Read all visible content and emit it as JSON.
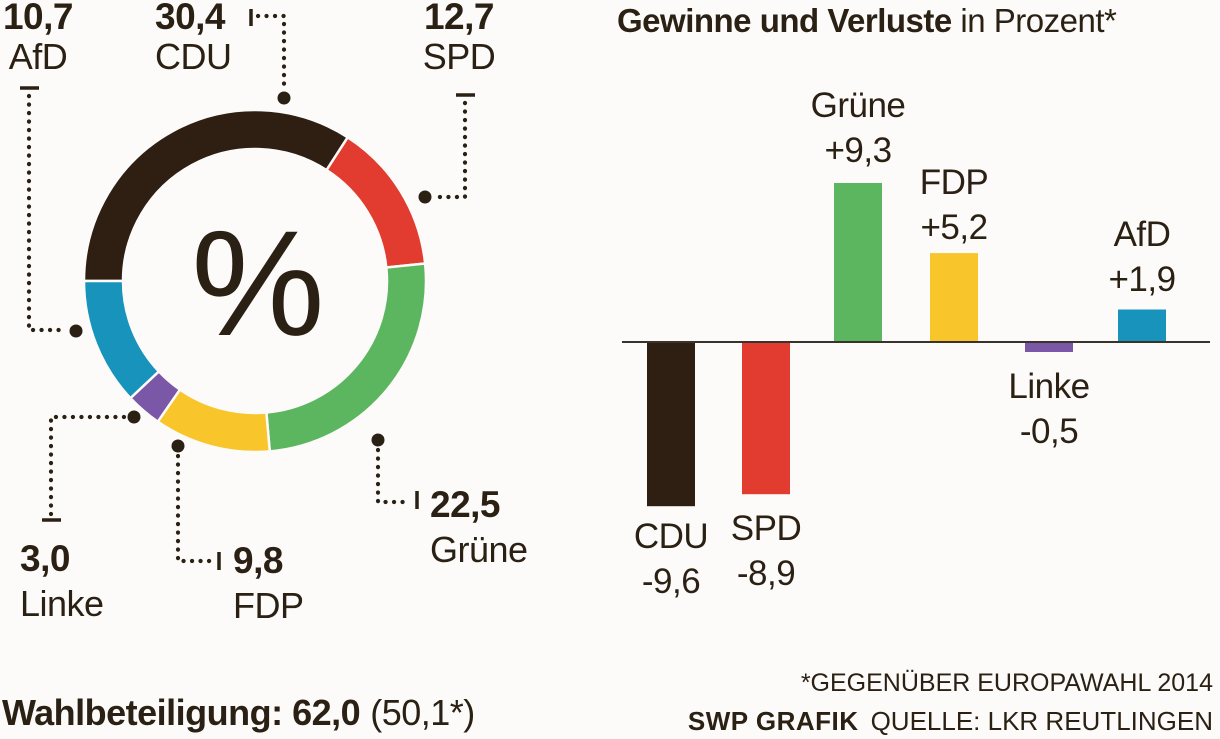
{
  "background_color": "#fcfbf9",
  "text_color": "#2b2014",
  "donut": {
    "center_symbol": "%",
    "segments": [
      {
        "party": "CDU",
        "value_label": "30,4",
        "value": 30.4,
        "color": "#2e1f12"
      },
      {
        "party": "SPD",
        "value_label": "12,7",
        "value": 12.7,
        "color": "#e23b30"
      },
      {
        "party": "Grüne",
        "value_label": "22,5",
        "value": 22.5,
        "color": "#5cb660"
      },
      {
        "party": "FDP",
        "value_label": "9,8",
        "value": 9.8,
        "color": "#f8c52a"
      },
      {
        "party": "Linke",
        "value_label": "3,0",
        "value": 3.0,
        "color": "#7b58a7"
      },
      {
        "party": "AfD",
        "value_label": "10,7",
        "value": 10.7,
        "color": "#1793bc"
      }
    ]
  },
  "bar_chart": {
    "title_bold": "Gewinne und Verluste",
    "title_rest": " in Prozent*",
    "bars": [
      {
        "party": "CDU",
        "label": "-9,6",
        "value": -9.6,
        "color": "#2e1f12"
      },
      {
        "party": "SPD",
        "label": "-8,9",
        "value": -8.9,
        "color": "#e23b30"
      },
      {
        "party": "Grüne",
        "label": "+9,3",
        "value": 9.3,
        "color": "#5cb660"
      },
      {
        "party": "FDP",
        "label": "+5,2",
        "value": 5.2,
        "color": "#f8c52a"
      },
      {
        "party": "Linke",
        "label": "-0,5",
        "value": -0.5,
        "color": "#7b58a7"
      },
      {
        "party": "AfD",
        "label": "+1,9",
        "value": 1.9,
        "color": "#1793bc"
      }
    ]
  },
  "footer": {
    "turnout_bold": "Wahlbeteiligung: 62,0",
    "turnout_rest": "(50,1*)",
    "note": "*GEGENÜBER EUROPAWAHL 2014",
    "credit_bold": "SWP GRAFIK",
    "credit_rest": "QUELLE: LKR REUTLINGEN"
  },
  "chart_data": [
    {
      "type": "pie",
      "donut": true,
      "title": "%",
      "unit": "percent of vote",
      "start_angle_deg": 270,
      "direction": "clockwise",
      "categories": [
        "CDU",
        "SPD",
        "Grüne",
        "FDP",
        "Linke",
        "AfD"
      ],
      "values": [
        30.4,
        12.7,
        22.5,
        9.8,
        3.0,
        10.7
      ],
      "colors": [
        "#2e1f12",
        "#e23b30",
        "#5cb660",
        "#f8c52a",
        "#7b58a7",
        "#1793bc"
      ],
      "annotation": "Wahlbeteiligung: 62,0 (50,1*)"
    },
    {
      "type": "bar",
      "title": "Gewinne und Verluste in Prozent*",
      "categories": [
        "CDU",
        "SPD",
        "Grüne",
        "FDP",
        "Linke",
        "AfD"
      ],
      "values": [
        -9.6,
        -8.9,
        9.3,
        5.2,
        -0.5,
        1.9
      ],
      "colors": [
        "#2e1f12",
        "#e23b30",
        "#5cb660",
        "#f8c52a",
        "#7b58a7",
        "#1793bc"
      ],
      "baseline": 0,
      "ylim": [
        -10,
        10
      ],
      "grid": false,
      "legend": false,
      "annotation": "*GEGENÜBER EUROPAWAHL 2014"
    }
  ]
}
